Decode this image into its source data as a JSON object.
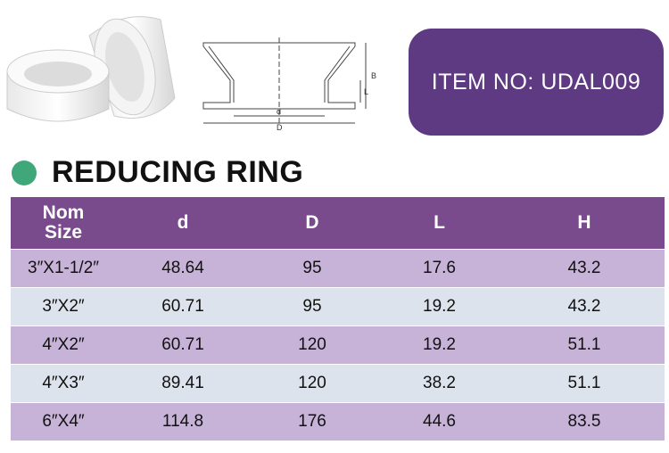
{
  "header": {
    "item_no": "ITEM NO: UDAL009",
    "title": "REDUCING RING"
  },
  "drawing": {
    "labels": [
      "B",
      "L",
      "d",
      "D"
    ]
  },
  "table": {
    "header": [
      "Nom Size",
      "d",
      "D",
      "L",
      "H"
    ],
    "rows": [
      [
        "3″X1-1/2″",
        "48.64",
        "95",
        "17.6",
        "43.2"
      ],
      [
        "3″X2″",
        "60.71",
        "95",
        "19.2",
        "43.2"
      ],
      [
        "4″X2″",
        "60.71",
        "120",
        "19.2",
        "51.1"
      ],
      [
        "4″X3″",
        "89.41",
        "120",
        "38.2",
        "51.1"
      ],
      [
        "6″X4″",
        "114.8",
        "176",
        "44.6",
        "83.5"
      ]
    ]
  }
}
